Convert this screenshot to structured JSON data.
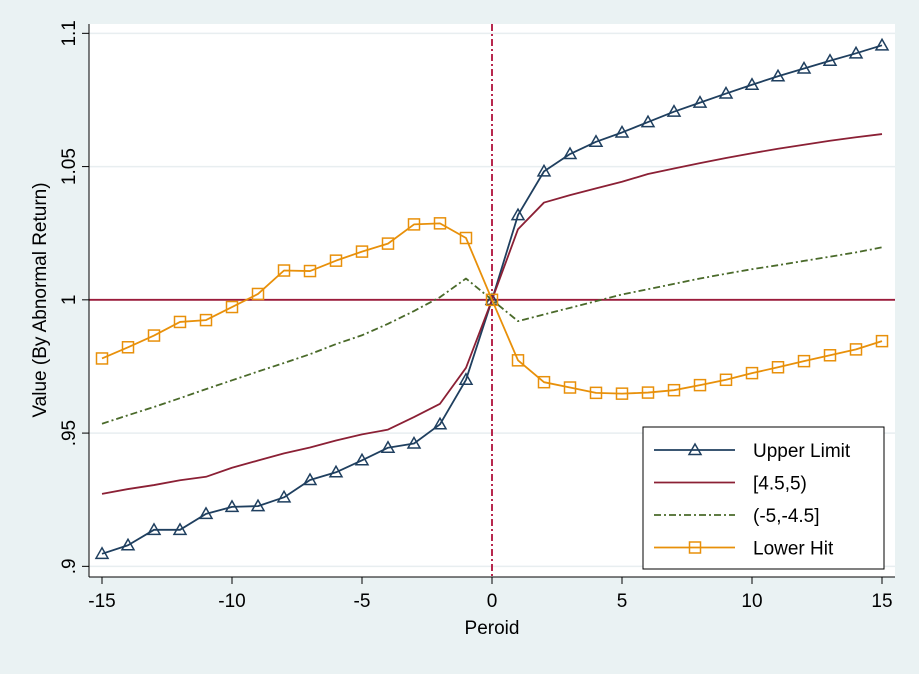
{
  "chart_data": {
    "type": "line",
    "title": "",
    "xlabel": "Peroid",
    "ylabel": "Value (By Abnormal Return)",
    "xlim": [
      -15.5,
      15.5
    ],
    "ylim": [
      0.896,
      1.1035
    ],
    "x_ticks": [
      {
        "value": -15,
        "label": "-15"
      },
      {
        "value": -10,
        "label": "-10"
      },
      {
        "value": -5,
        "label": "-5"
      },
      {
        "value": 0,
        "label": "0"
      },
      {
        "value": 5,
        "label": "5"
      },
      {
        "value": 10,
        "label": "10"
      },
      {
        "value": 15,
        "label": "15"
      }
    ],
    "y_ticks": [
      {
        "value": 0.9,
        "label": ".9"
      },
      {
        "value": 0.95,
        "label": ".95"
      },
      {
        "value": 1.0,
        "label": "1"
      },
      {
        "value": 1.05,
        "label": "1.05"
      },
      {
        "value": 1.1,
        "label": "1.1"
      }
    ],
    "grid": true,
    "reference_lines": [
      {
        "axis": "y",
        "value": 1.0,
        "color": "#9b1b3b",
        "style": "solid"
      },
      {
        "axis": "x",
        "value": 0,
        "color": "#b0103a",
        "style": "dash-dot"
      }
    ],
    "legend_position": "bottom-right",
    "x": [
      -15,
      -14,
      -13,
      -12,
      -11,
      -10,
      -9,
      -8,
      -7,
      -6,
      -5,
      -4,
      -3,
      -2,
      -1,
      0,
      1,
      2,
      3,
      4,
      5,
      6,
      7,
      8,
      9,
      10,
      11,
      12,
      13,
      14,
      15
    ],
    "series": [
      {
        "name": "Upper Limit",
        "color": "#1f3f5f",
        "line": "solid",
        "marker": "triangle",
        "values": [
          0.9047,
          0.9079,
          0.9137,
          0.9137,
          0.9197,
          0.9223,
          0.9226,
          0.9259,
          0.9324,
          0.9353,
          0.9398,
          0.9445,
          0.9461,
          0.9533,
          0.97,
          1.0,
          1.0318,
          1.0482,
          1.0547,
          1.0593,
          1.0628,
          1.0667,
          1.0706,
          1.074,
          1.0774,
          1.0807,
          1.0839,
          1.0868,
          1.0897,
          1.0925,
          1.0955
        ]
      },
      {
        "name": "[4.5,5)",
        "color": "#8b2035",
        "line": "solid",
        "marker": "none",
        "values": [
          0.9272,
          0.929,
          0.9305,
          0.9323,
          0.9336,
          0.937,
          0.9397,
          0.9424,
          0.9446,
          0.9472,
          0.9495,
          0.9513,
          0.956,
          0.961,
          0.9745,
          1.0,
          1.0265,
          1.0365,
          1.0393,
          1.0418,
          1.0443,
          1.0472,
          1.0493,
          1.0513,
          1.0532,
          1.055,
          1.0567,
          1.0582,
          1.0597,
          1.061,
          1.0622
        ]
      },
      {
        "name": "(-5,-4.5]",
        "color": "#4a6a2a",
        "line": "dash-dot",
        "marker": "none",
        "values": [
          0.9535,
          0.9567,
          0.9598,
          0.9631,
          0.9665,
          0.9698,
          0.9731,
          0.9763,
          0.9796,
          0.9834,
          0.9867,
          0.991,
          0.9958,
          1.001,
          1.008,
          1.0,
          0.992,
          0.9945,
          0.997,
          0.9995,
          1.002,
          1.004,
          1.006,
          1.008,
          1.0098,
          1.0115,
          1.013,
          1.0146,
          1.0162,
          1.0178,
          1.0197
        ]
      },
      {
        "name": "Lower Hit",
        "color": "#e8900a",
        "line": "solid",
        "marker": "square",
        "values": [
          0.978,
          0.9822,
          0.9866,
          0.9917,
          0.9924,
          0.9973,
          1.0022,
          1.011,
          1.0108,
          1.0147,
          1.0181,
          1.0211,
          1.0283,
          1.0287,
          1.0232,
          1.0,
          0.9773,
          0.9691,
          0.9671,
          0.9651,
          0.9648,
          0.9652,
          0.9661,
          0.968,
          0.97,
          0.9725,
          0.9747,
          0.977,
          0.9792,
          0.9814,
          0.9845
        ]
      }
    ]
  }
}
